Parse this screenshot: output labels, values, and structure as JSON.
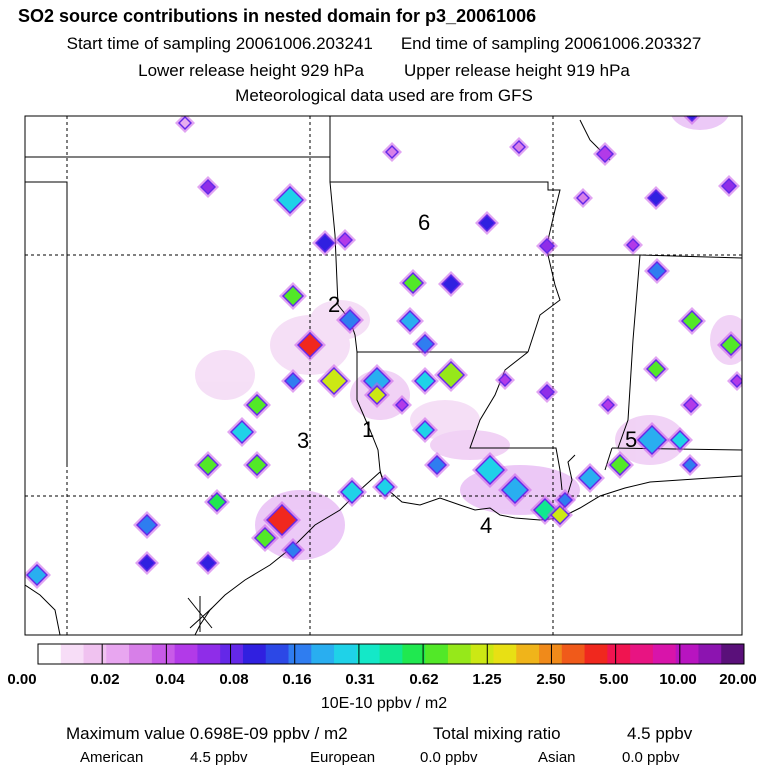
{
  "title": "SO2 source contributions in nested domain for p3_20061006",
  "sampling": {
    "start": "Start time of sampling 20061006.203241",
    "end": "End time of sampling 20061006.203327"
  },
  "release": {
    "lower": "Lower release height  929 hPa",
    "upper": "Upper release height  919 hPa"
  },
  "met_data": "Meteorological data used are from GFS",
  "regions": [
    {
      "label": "1"
    },
    {
      "label": "2"
    },
    {
      "label": "3"
    },
    {
      "label": "4"
    },
    {
      "label": "5"
    },
    {
      "label": "6"
    }
  ],
  "colorbar": {
    "colors": [
      "#ffffff",
      "#f7ddf7",
      "#f0c2f0",
      "#e8a6f0",
      "#d77fe8",
      "#c85ae8",
      "#b23ae8",
      "#8f2de8",
      "#6428e8",
      "#3020e0",
      "#2c48e6",
      "#2f7df0",
      "#29aef0",
      "#1fd2e8",
      "#14e8c8",
      "#10e890",
      "#20e850",
      "#52e828",
      "#96e81a",
      "#cce814",
      "#e8e014",
      "#f0b41a",
      "#f08a1a",
      "#f05a1a",
      "#f0281e",
      "#f01450",
      "#e81482",
      "#d814aa",
      "#b814c0",
      "#8c14b0",
      "#5a107a"
    ],
    "ticks": [
      "0.00",
      "0.02",
      "0.04",
      "0.08",
      "0.16",
      "0.31",
      "0.62",
      "1.25",
      "2.50",
      "5.00",
      "10.00",
      "20.00"
    ],
    "unit": "10E-10 ppbv / m2"
  },
  "stats": {
    "max_label": "Maximum value  0.698E-09 ppbv / m2",
    "total_label": "Total mixing ratio",
    "total_value": "4.5 ppbv"
  },
  "sources": [
    {
      "name": "American",
      "value": "4.5 ppbv"
    },
    {
      "name": "European",
      "value": "0.0 ppbv"
    },
    {
      "name": "Asian",
      "value": "0.0 ppbv"
    }
  ]
}
